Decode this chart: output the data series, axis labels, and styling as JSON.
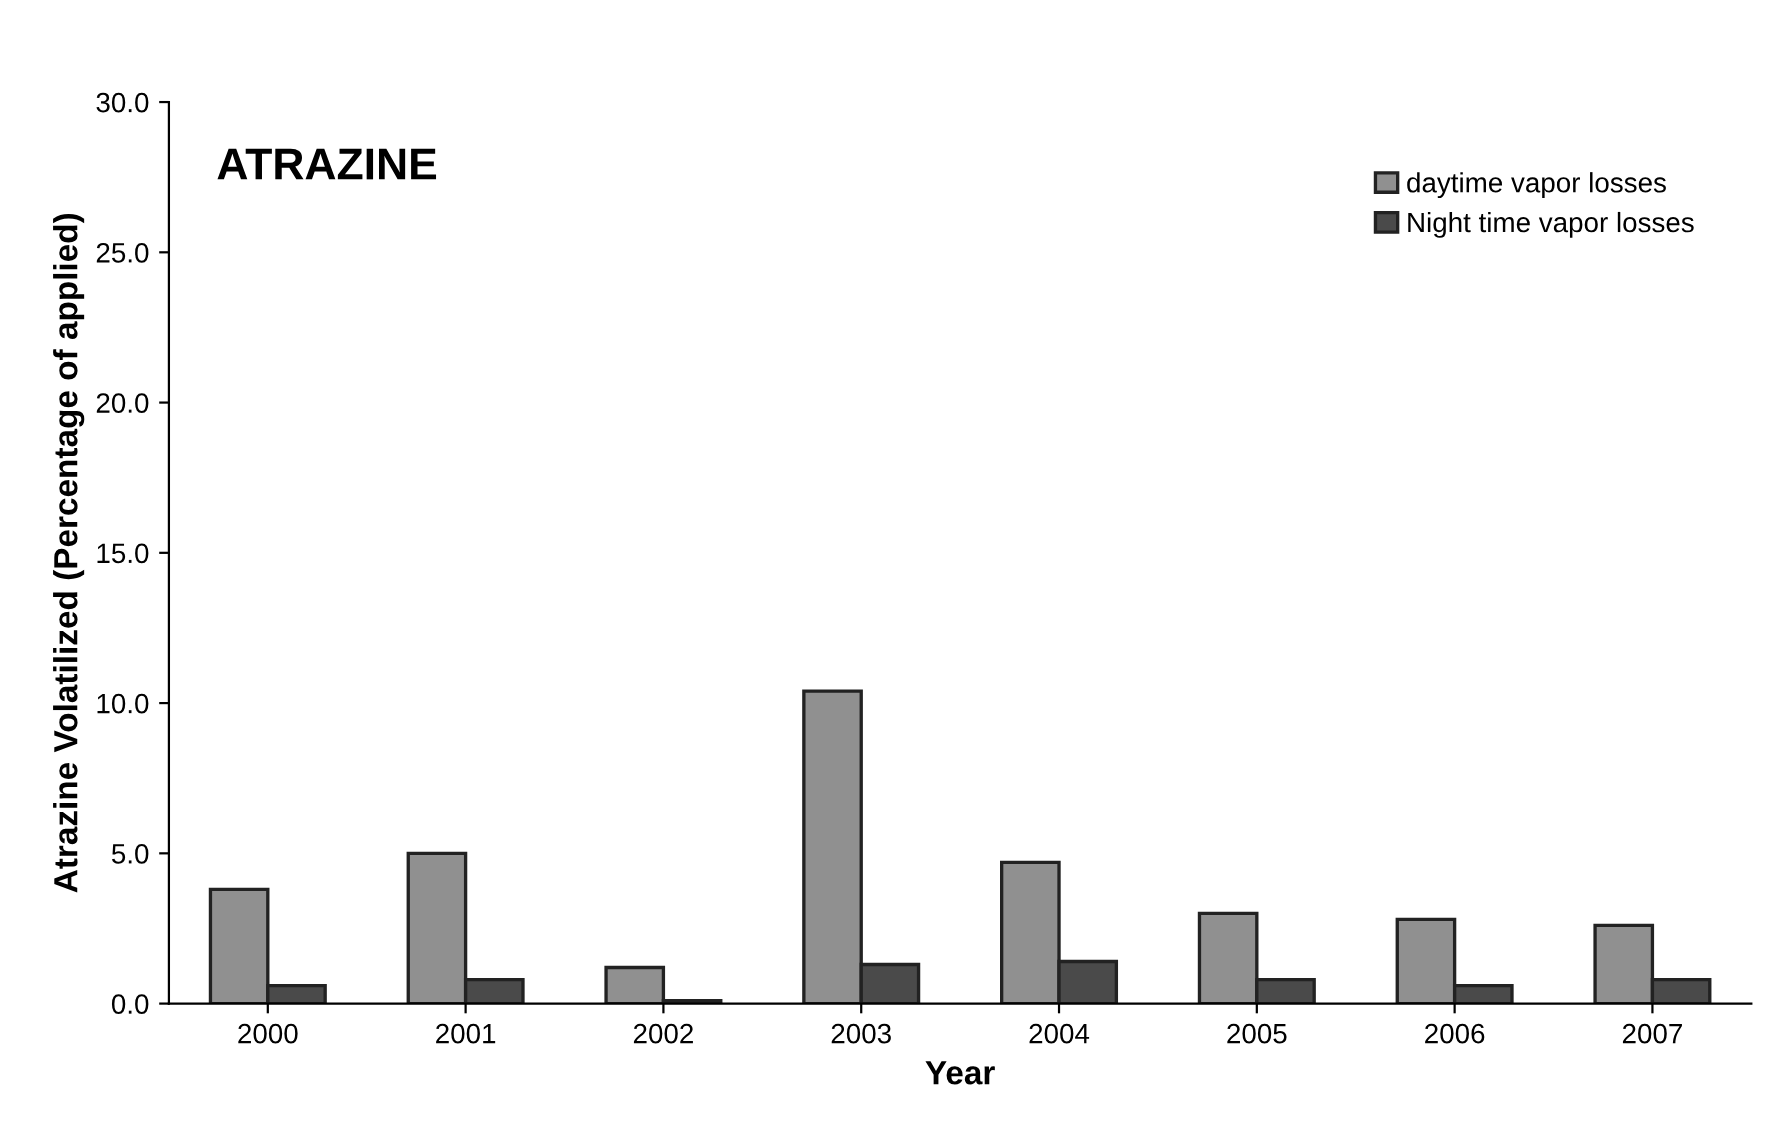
{
  "chart_data": {
    "type": "bar",
    "title": "ATRAZINE",
    "xlabel": "Year",
    "ylabel": "Atrazine Volatilized (Percentage of applied)",
    "categories": [
      "2000",
      "2001",
      "2002",
      "2003",
      "2004",
      "2005",
      "2006",
      "2007"
    ],
    "series": [
      {
        "name": "daytime vapor losses",
        "color": "#909090",
        "values": [
          3.8,
          5.0,
          1.2,
          10.4,
          4.7,
          3.0,
          2.8,
          2.6
        ]
      },
      {
        "name": "Night time vapor losses",
        "color": "#4a4a4a",
        "values": [
          0.6,
          0.8,
          0.1,
          1.3,
          1.4,
          0.8,
          0.6,
          0.8
        ]
      }
    ],
    "ylim": [
      0,
      30
    ],
    "yticks": [
      {
        "value": 0,
        "label": "0.0"
      },
      {
        "value": 5,
        "label": "5.0"
      },
      {
        "value": 10,
        "label": "10.0"
      },
      {
        "value": 15,
        "label": "15.0"
      },
      {
        "value": 20,
        "label": "20.0"
      },
      {
        "value": 25,
        "label": "25.0"
      },
      {
        "value": 30,
        "label": "30.0"
      }
    ],
    "grid": false,
    "legend": "top right"
  }
}
